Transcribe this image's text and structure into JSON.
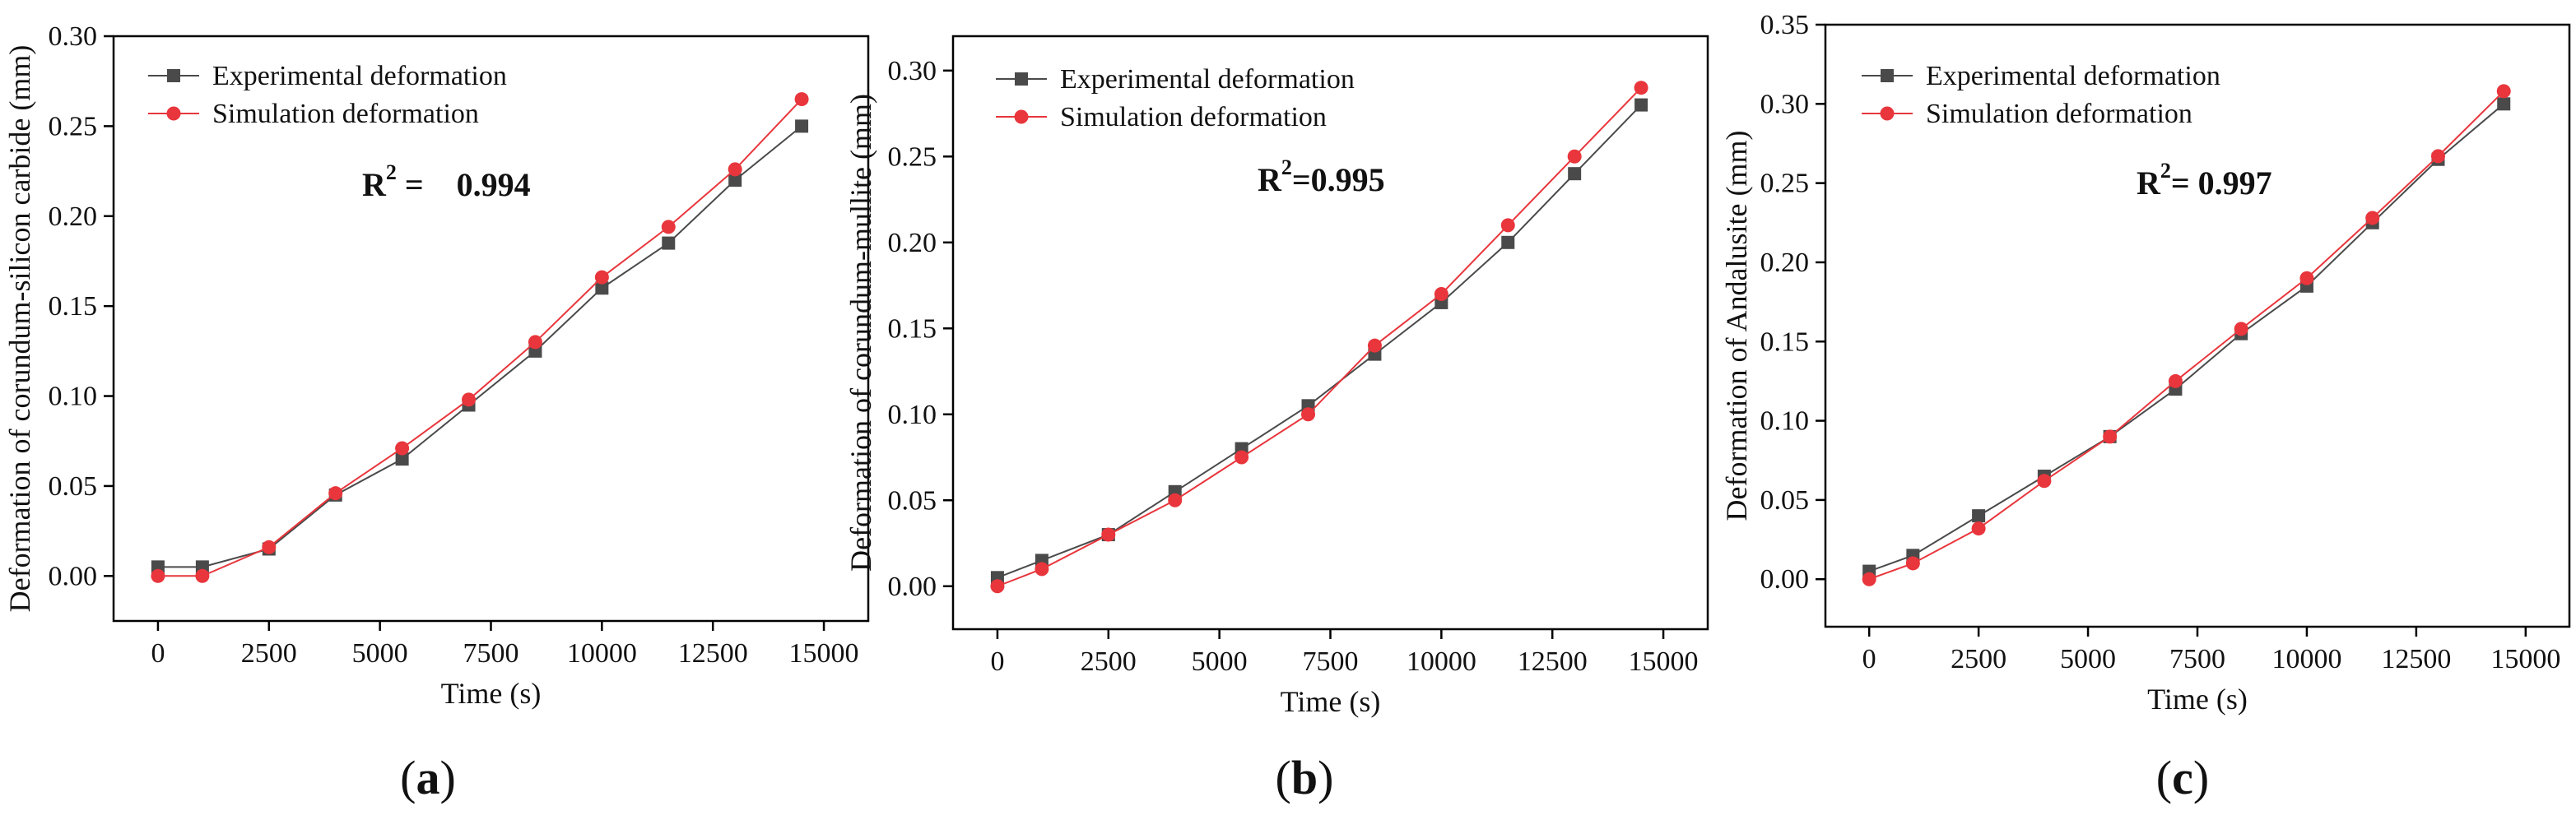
{
  "chart_data": [
    {
      "type": "line",
      "panel": "a",
      "ylabel": "Deformation of corundum-silicon carbide (mm)",
      "xlabel": "Time (s)",
      "xlim": [
        -1000,
        16000
      ],
      "ylim": [
        -0.025,
        0.3
      ],
      "xticks": [
        0,
        2500,
        5000,
        7500,
        10000,
        12500,
        15000
      ],
      "xtick_labels": [
        "0",
        "2500",
        "5000",
        "7500",
        "10000",
        "12500",
        "15000"
      ],
      "yticks": [
        0.0,
        0.05,
        0.1,
        0.15,
        0.2,
        0.25,
        0.3
      ],
      "ytick_labels": [
        "0.00",
        "0.05",
        "0.10",
        "0.15",
        "0.20",
        "0.25",
        "0.30"
      ],
      "r2_text": "0.994",
      "r2_prefix": "R",
      "r2_sup": "2",
      "r2_sep": " =    ",
      "legend": [
        "Experimental deformation",
        "Simulation deformation"
      ],
      "series": [
        {
          "name": "Experimental deformation",
          "color": "#4a4a4a",
          "marker": "square",
          "x": [
            0,
            1000,
            2500,
            4000,
            5500,
            7000,
            8500,
            10000,
            11500,
            13000,
            14500
          ],
          "y": [
            0.005,
            0.005,
            0.015,
            0.045,
            0.065,
            0.095,
            0.125,
            0.16,
            0.185,
            0.22,
            0.25
          ]
        },
        {
          "name": "Simulation deformation",
          "color": "#e8363c",
          "marker": "circle",
          "x": [
            0,
            1000,
            2500,
            4000,
            5500,
            7000,
            8500,
            10000,
            11500,
            13000,
            14500
          ],
          "y": [
            0.0,
            0.0,
            0.016,
            0.046,
            0.071,
            0.098,
            0.13,
            0.166,
            0.194,
            0.226,
            0.265
          ]
        }
      ]
    },
    {
      "type": "line",
      "panel": "b",
      "ylabel": "Deformation of corundum-mullite (mm)",
      "xlabel": "Time (s)",
      "xlim": [
        -1000,
        16000
      ],
      "ylim": [
        -0.025,
        0.32
      ],
      "xticks": [
        0,
        2500,
        5000,
        7500,
        10000,
        12500,
        15000
      ],
      "xtick_labels": [
        "0",
        "2500",
        "5000",
        "7500",
        "10000",
        "12500",
        "15000"
      ],
      "yticks": [
        0.0,
        0.05,
        0.1,
        0.15,
        0.2,
        0.25,
        0.3
      ],
      "ytick_labels": [
        "0.00",
        "0.05",
        "0.10",
        "0.15",
        "0.20",
        "0.25",
        "0.30"
      ],
      "r2_text": "0.995",
      "r2_prefix": "R",
      "r2_sup": "2",
      "r2_sep": "=",
      "legend": [
        "Experimental deformation",
        "Simulation deformation"
      ],
      "series": [
        {
          "name": "Experimental deformation",
          "color": "#4a4a4a",
          "marker": "square",
          "x": [
            0,
            1000,
            2500,
            4000,
            5500,
            7000,
            8500,
            10000,
            11500,
            13000,
            14500
          ],
          "y": [
            0.005,
            0.015,
            0.03,
            0.055,
            0.08,
            0.105,
            0.135,
            0.165,
            0.2,
            0.24,
            0.28
          ]
        },
        {
          "name": "Simulation deformation",
          "color": "#e8363c",
          "marker": "circle",
          "x": [
            0,
            1000,
            2500,
            4000,
            5500,
            7000,
            8500,
            10000,
            11500,
            13000,
            14500
          ],
          "y": [
            0.0,
            0.01,
            0.03,
            0.05,
            0.075,
            0.1,
            0.14,
            0.17,
            0.21,
            0.25,
            0.29
          ]
        }
      ]
    },
    {
      "type": "line",
      "panel": "c",
      "ylabel": "Deformation of Andalusite (mm)",
      "xlabel": "Time (s)",
      "xlim": [
        -1000,
        16000
      ],
      "ylim": [
        -0.03,
        0.35
      ],
      "xticks": [
        0,
        2500,
        5000,
        7500,
        10000,
        12500,
        15000
      ],
      "xtick_labels": [
        "0",
        "2500",
        "5000",
        "7500",
        "10000",
        "12500",
        "15000"
      ],
      "yticks": [
        0.0,
        0.05,
        0.1,
        0.15,
        0.2,
        0.25,
        0.3,
        0.35
      ],
      "ytick_labels": [
        "0.00",
        "0.05",
        "0.10",
        "0.15",
        "0.20",
        "0.25",
        "0.30",
        "0.35"
      ],
      "r2_text": "0.997",
      "r2_prefix": "R",
      "r2_sup": "2",
      "r2_sep": "= ",
      "legend": [
        "Experimental deformation",
        "Simulation deformation"
      ],
      "series": [
        {
          "name": "Experimental deformation",
          "color": "#4a4a4a",
          "marker": "square",
          "x": [
            0,
            1000,
            2500,
            4000,
            5500,
            7000,
            8500,
            10000,
            11500,
            13000,
            14500
          ],
          "y": [
            0.005,
            0.015,
            0.04,
            0.065,
            0.09,
            0.12,
            0.155,
            0.185,
            0.225,
            0.265,
            0.3
          ]
        },
        {
          "name": "Simulation deformation",
          "color": "#e8363c",
          "marker": "circle",
          "x": [
            0,
            1000,
            2500,
            4000,
            5500,
            7000,
            8500,
            10000,
            11500,
            13000,
            14500
          ],
          "y": [
            0.0,
            0.01,
            0.032,
            0.062,
            0.09,
            0.125,
            0.158,
            0.19,
            0.228,
            0.267,
            0.308
          ]
        }
      ]
    }
  ],
  "panel_labels": [
    "a",
    "b",
    "c"
  ],
  "panel_paren_open": "(",
  "panel_paren_close": ")"
}
